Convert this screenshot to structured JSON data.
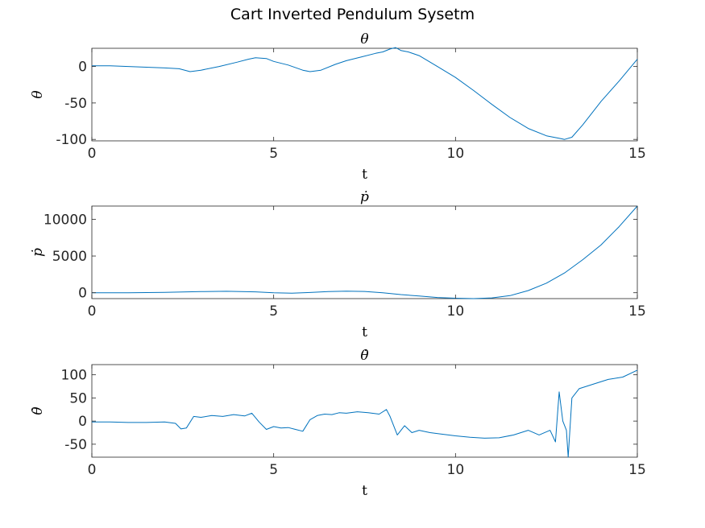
{
  "figure": {
    "title": "Cart Inverted Pendulum Sysetm",
    "line_color": "#0072BD"
  },
  "chart_data": [
    {
      "type": "line",
      "title": "θ",
      "xlabel": "t",
      "ylabel": "θ",
      "xlim": [
        0,
        15
      ],
      "ylim": [
        -102,
        25
      ],
      "xticks": [
        "0",
        "5",
        "10",
        "15"
      ],
      "yticks": [
        "0",
        "-50",
        "-100"
      ],
      "ytick_values": [
        0,
        -50,
        -100
      ],
      "series": [
        {
          "x": [
            0,
            0.5,
            1,
            1.5,
            2,
            2.4,
            2.7,
            3,
            3.5,
            4,
            4.3,
            4.5,
            4.8,
            5,
            5.4,
            5.8,
            6,
            6.3,
            6.7,
            7,
            7.4,
            7.8,
            8,
            8.2,
            8.35,
            8.5,
            8.7,
            9,
            9.5,
            10,
            10.5,
            11,
            11.5,
            12,
            12.5,
            12.9,
            13,
            13.2,
            13.5,
            14,
            14.5,
            15
          ],
          "y": [
            1,
            1,
            0,
            -1,
            -2,
            -3,
            -7,
            -5,
            0,
            6,
            10,
            12,
            11,
            7,
            2,
            -5,
            -7,
            -5,
            3,
            8,
            13,
            18,
            20,
            24,
            26,
            22,
            20,
            15,
            0,
            -15,
            -33,
            -52,
            -70,
            -85,
            -95,
            -99,
            -100,
            -97,
            -80,
            -48,
            -20,
            10
          ]
        }
      ]
    },
    {
      "type": "line",
      "title": "ṗ",
      "xlabel": "t",
      "ylabel": "ṗ",
      "xlim": [
        0,
        15
      ],
      "ylim": [
        -800,
        11800
      ],
      "xticks": [
        "0",
        "5",
        "10",
        "15"
      ],
      "yticks": [
        "10000",
        "5000",
        "0"
      ],
      "ytick_values": [
        10000,
        5000,
        0
      ],
      "series": [
        {
          "x": [
            0,
            1,
            2,
            3,
            3.7,
            4.5,
            5,
            5.5,
            6,
            6.5,
            7,
            7.5,
            8,
            8.5,
            9,
            9.5,
            10,
            10.5,
            11,
            11.5,
            12,
            12.5,
            13,
            13.5,
            14,
            14.5,
            15
          ],
          "y": [
            0,
            0,
            50,
            150,
            200,
            120,
            0,
            -50,
            30,
            150,
            220,
            170,
            0,
            -250,
            -450,
            -650,
            -750,
            -800,
            -700,
            -400,
            300,
            1300,
            2700,
            4500,
            6500,
            9000,
            11800
          ]
        }
      ]
    },
    {
      "type": "line",
      "title": "θ̇",
      "xlabel": "t",
      "ylabel": "θ̇",
      "xlim": [
        0,
        15
      ],
      "ylim": [
        -78,
        122
      ],
      "xticks": [
        "0",
        "5",
        "10",
        "15"
      ],
      "yticks": [
        "100",
        "50",
        "0",
        "-50"
      ],
      "ytick_values": [
        100,
        50,
        0,
        -50
      ],
      "series": [
        {
          "x": [
            0,
            0.5,
            1,
            1.5,
            2,
            2.3,
            2.45,
            2.6,
            2.8,
            3,
            3.3,
            3.6,
            3.9,
            4.2,
            4.4,
            4.6,
            4.8,
            5,
            5.2,
            5.4,
            5.6,
            5.8,
            6,
            6.2,
            6.4,
            6.6,
            6.8,
            7,
            7.3,
            7.6,
            7.9,
            8.1,
            8.2,
            8.4,
            8.6,
            8.8,
            9,
            9.3,
            9.6,
            10,
            10.4,
            10.8,
            11.2,
            11.6,
            12,
            12.3,
            12.6,
            12.75,
            12.85,
            12.95,
            13.05,
            13.1,
            13.2,
            13.4,
            13.8,
            14.2,
            14.6,
            15
          ],
          "y": [
            -2,
            -2,
            -3,
            -3,
            -2,
            -5,
            -17,
            -15,
            10,
            8,
            12,
            10,
            14,
            11,
            17,
            -2,
            -18,
            -12,
            -15,
            -14,
            -18,
            -22,
            3,
            12,
            15,
            14,
            18,
            17,
            20,
            18,
            15,
            25,
            10,
            -30,
            -10,
            -25,
            -20,
            -25,
            -28,
            -32,
            -35,
            -37,
            -36,
            -30,
            -20,
            -30,
            -20,
            -45,
            63,
            0,
            -20,
            -78,
            50,
            70,
            80,
            90,
            95,
            110
          ]
        }
      ]
    }
  ]
}
